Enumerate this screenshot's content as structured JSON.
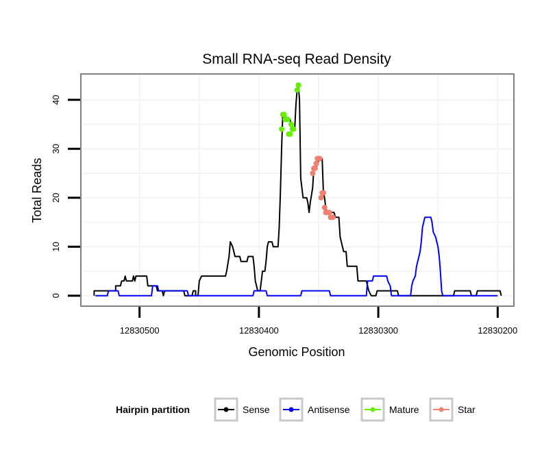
{
  "chart_data": {
    "type": "line",
    "title": "Small RNA-seq Read Density",
    "xlabel": "Genomic Position",
    "ylabel": "Total Reads",
    "x_reversed": true,
    "xlim": [
      12830548,
      12830187
    ],
    "ylim": [
      -2,
      45
    ],
    "x_ticks": [
      12830500,
      12830400,
      12830300,
      12830200
    ],
    "x_tick_labels": [
      "12830500",
      "12830400",
      "12830300",
      "12830200"
    ],
    "y_ticks": [
      0,
      10,
      20,
      30,
      40
    ],
    "y_tick_labels": [
      "0",
      "10",
      "20",
      "30",
      "40"
    ],
    "grid": true,
    "legend": {
      "title": "Hairpin partition",
      "position": "bottom",
      "entries": [
        "Sense",
        "Antisense",
        "Mature",
        "Star"
      ]
    },
    "colors": {
      "Sense": "#000000",
      "Antisense": "#0000ff",
      "Mature": "#66ee00",
      "Star": "#f08070"
    },
    "series": [
      {
        "name": "Sense",
        "style": "line",
        "points": [
          [
            12830538,
            0
          ],
          [
            12830538,
            1
          ],
          [
            12830520,
            1
          ],
          [
            12830520,
            2
          ],
          [
            12830516,
            2
          ],
          [
            12830515,
            3
          ],
          [
            12830513,
            3
          ],
          [
            12830512,
            4
          ],
          [
            12830511,
            3
          ],
          [
            12830506,
            3
          ],
          [
            12830505,
            4
          ],
          [
            12830504,
            3
          ],
          [
            12830503,
            4
          ],
          [
            12830494,
            4
          ],
          [
            12830493,
            2
          ],
          [
            12830486,
            2
          ],
          [
            12830485,
            1
          ],
          [
            12830481,
            1
          ],
          [
            12830480,
            0
          ],
          [
            12830479,
            1
          ],
          [
            12830463,
            1
          ],
          [
            12830462,
            0
          ],
          [
            12830456,
            0
          ],
          [
            12830455,
            1
          ],
          [
            12830453,
            1
          ],
          [
            12830453,
            0
          ],
          [
            12830451,
            0
          ],
          [
            12830450,
            3
          ],
          [
            12830448,
            4
          ],
          [
            12830428,
            4
          ],
          [
            12830427,
            5
          ],
          [
            12830425,
            8
          ],
          [
            12830424,
            11
          ],
          [
            12830422,
            10
          ],
          [
            12830421,
            9
          ],
          [
            12830420,
            8
          ],
          [
            12830416,
            8
          ],
          [
            12830415,
            7
          ],
          [
            12830410,
            7
          ],
          [
            12830409,
            8
          ],
          [
            12830405,
            8
          ],
          [
            12830404,
            6
          ],
          [
            12830403,
            3
          ],
          [
            12830402,
            2
          ],
          [
            12830401,
            1
          ],
          [
            12830399,
            1
          ],
          [
            12830398,
            3
          ],
          [
            12830397,
            5
          ],
          [
            12830395,
            5
          ],
          [
            12830394,
            7
          ],
          [
            12830393,
            10
          ],
          [
            12830392,
            11
          ],
          [
            12830389,
            11
          ],
          [
            12830388,
            10
          ],
          [
            12830384,
            10
          ],
          [
            12830383,
            14
          ],
          [
            12830382,
            21
          ],
          [
            12830381,
            30
          ],
          [
            12830380,
            37
          ],
          [
            12830378,
            37
          ],
          [
            12830377,
            36
          ],
          [
            12830374,
            36
          ],
          [
            12830373,
            35
          ],
          [
            12830372,
            34
          ],
          [
            12830370,
            34
          ],
          [
            12830369,
            39
          ],
          [
            12830368,
            42
          ],
          [
            12830367,
            43
          ],
          [
            12830366,
            40
          ],
          [
            12830365,
            24
          ],
          [
            12830364,
            22
          ],
          [
            12830363,
            20
          ],
          [
            12830360,
            20
          ],
          [
            12830359,
            19
          ],
          [
            12830358,
            17
          ],
          [
            12830357,
            19
          ],
          [
            12830355,
            22
          ],
          [
            12830354,
            26
          ],
          [
            12830352,
            26
          ],
          [
            12830351,
            27
          ],
          [
            12830349,
            28
          ],
          [
            12830347,
            28
          ],
          [
            12830346,
            21
          ],
          [
            12830345,
            20
          ],
          [
            12830344,
            18
          ],
          [
            12830343,
            17
          ],
          [
            12830337,
            17
          ],
          [
            12830336,
            16
          ],
          [
            12830333,
            16
          ],
          [
            12830332,
            12
          ],
          [
            12830330,
            10
          ],
          [
            12830329,
            9
          ],
          [
            12830327,
            9
          ],
          [
            12830326,
            6
          ],
          [
            12830318,
            6
          ],
          [
            12830317,
            3
          ],
          [
            12830310,
            3
          ],
          [
            12830309,
            2
          ],
          [
            12830308,
            1
          ],
          [
            12830306,
            0
          ],
          [
            12830302,
            0
          ],
          [
            12830301,
            1
          ],
          [
            12830284,
            1
          ],
          [
            12830283,
            0
          ],
          [
            12830237,
            0
          ],
          [
            12830236,
            1
          ],
          [
            12830223,
            1
          ],
          [
            12830222,
            0
          ],
          [
            12830218,
            0
          ],
          [
            12830217,
            1
          ],
          [
            12830198,
            1
          ],
          [
            12830197,
            0
          ]
        ]
      },
      {
        "name": "Antisense",
        "style": "line",
        "points": [
          [
            12830537,
            0
          ],
          [
            12830527,
            0
          ],
          [
            12830526,
            1
          ],
          [
            12830518,
            1
          ],
          [
            12830517,
            0
          ],
          [
            12830490,
            0
          ],
          [
            12830489,
            2
          ],
          [
            12830485,
            2
          ],
          [
            12830484,
            1
          ],
          [
            12830460,
            1
          ],
          [
            12830459,
            0
          ],
          [
            12830405,
            0
          ],
          [
            12830404,
            1
          ],
          [
            12830394,
            1
          ],
          [
            12830393,
            0
          ],
          [
            12830365,
            0
          ],
          [
            12830364,
            1
          ],
          [
            12830341,
            1
          ],
          [
            12830340,
            0
          ],
          [
            12830310,
            0
          ],
          [
            12830309,
            3
          ],
          [
            12830305,
            3
          ],
          [
            12830304,
            4
          ],
          [
            12830293,
            4
          ],
          [
            12830292,
            3
          ],
          [
            12830290,
            2
          ],
          [
            12830289,
            0
          ],
          [
            12830273,
            0
          ],
          [
            12830272,
            2
          ],
          [
            12830271,
            3
          ],
          [
            12830269,
            4
          ],
          [
            12830268,
            6
          ],
          [
            12830266,
            8
          ],
          [
            12830265,
            9
          ],
          [
            12830264,
            11
          ],
          [
            12830263,
            14
          ],
          [
            12830262,
            15
          ],
          [
            12830261,
            16
          ],
          [
            12830256,
            16
          ],
          [
            12830255,
            15
          ],
          [
            12830254,
            13
          ],
          [
            12830252,
            12
          ],
          [
            12830250,
            10
          ],
          [
            12830249,
            8
          ],
          [
            12830248,
            5
          ],
          [
            12830247,
            1
          ],
          [
            12830246,
            0
          ],
          [
            12830200,
            0
          ]
        ]
      },
      {
        "name": "Mature",
        "style": "points",
        "points": [
          [
            12830381,
            34
          ],
          [
            12830380,
            37
          ],
          [
            12830379,
            37
          ],
          [
            12830378,
            36
          ],
          [
            12830377,
            36
          ],
          [
            12830376,
            36
          ],
          [
            12830375,
            33
          ],
          [
            12830374,
            33
          ],
          [
            12830373,
            35
          ],
          [
            12830372,
            34
          ],
          [
            12830371,
            34
          ],
          [
            12830368,
            42
          ],
          [
            12830367,
            43
          ]
        ]
      },
      {
        "name": "Star",
        "style": "points",
        "points": [
          [
            12830355,
            25
          ],
          [
            12830354,
            26
          ],
          [
            12830353,
            26
          ],
          [
            12830352,
            27
          ],
          [
            12830351,
            28
          ],
          [
            12830350,
            28
          ],
          [
            12830349,
            28
          ],
          [
            12830348,
            20
          ],
          [
            12830347,
            21
          ],
          [
            12830346,
            21
          ],
          [
            12830345,
            18
          ],
          [
            12830344,
            17
          ],
          [
            12830342,
            17
          ],
          [
            12830341,
            17
          ],
          [
            12830340,
            16
          ],
          [
            12830339,
            16
          ],
          [
            12830338,
            16
          ]
        ]
      }
    ]
  }
}
